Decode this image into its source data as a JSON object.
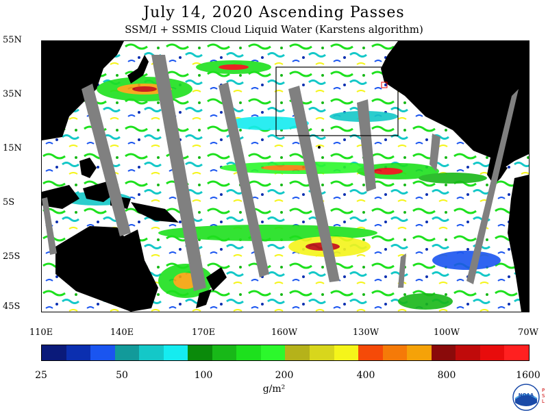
{
  "title": "July 14, 2020  Ascending Passes",
  "subtitle": "SSM/I + SSMIS Cloud Liquid Water (Karstens algorithm)",
  "lat_labels": [
    "55N",
    "35N",
    "15N",
    "5S",
    "25S",
    "45S"
  ],
  "lon_labels": [
    "110E",
    "140E",
    "170E",
    "160W",
    "130W",
    "100W",
    "70W"
  ],
  "colorbar": {
    "colors": [
      "#0a1a7a",
      "#0b2fb0",
      "#1a55f0",
      "#129a9a",
      "#14c8c8",
      "#15ecf0",
      "#0a8a0a",
      "#18b818",
      "#1de01d",
      "#2cf82c",
      "#b5b21a",
      "#d8d61c",
      "#f5f51a",
      "#f54a08",
      "#f57a08",
      "#f5a208",
      "#8a0a0a",
      "#c00a0a",
      "#e80c0c",
      "#ff2020"
    ],
    "labels": [
      "25",
      "50",
      "100",
      "200",
      "400",
      "800",
      "1600"
    ]
  },
  "units": "g/m²",
  "logo": {
    "text": "NOAA",
    "side_text": "PSL"
  }
}
